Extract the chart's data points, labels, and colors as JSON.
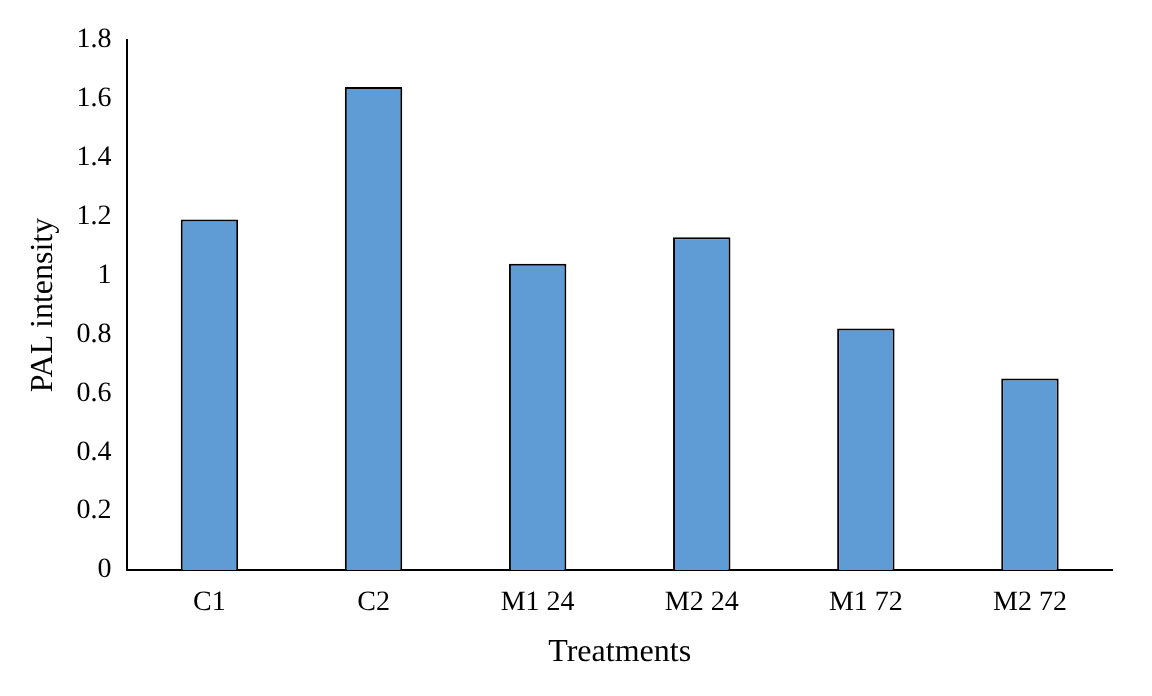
{
  "chart_data": {
    "type": "bar",
    "xlabel": "Treatments",
    "ylabel": "PAL intensity",
    "categories": [
      "C1",
      "C2",
      "M1 24",
      "M2 24",
      "M1 72",
      "M2 72"
    ],
    "values": [
      1.19,
      1.64,
      1.04,
      1.13,
      0.82,
      0.65
    ],
    "color": "#5f9bd5",
    "ylim": [
      0,
      1.8
    ],
    "yticks": [
      0,
      0.2,
      0.4,
      0.6,
      0.8,
      1,
      1.2,
      1.4,
      1.6,
      1.8
    ],
    "grid": false,
    "legend": false
  }
}
